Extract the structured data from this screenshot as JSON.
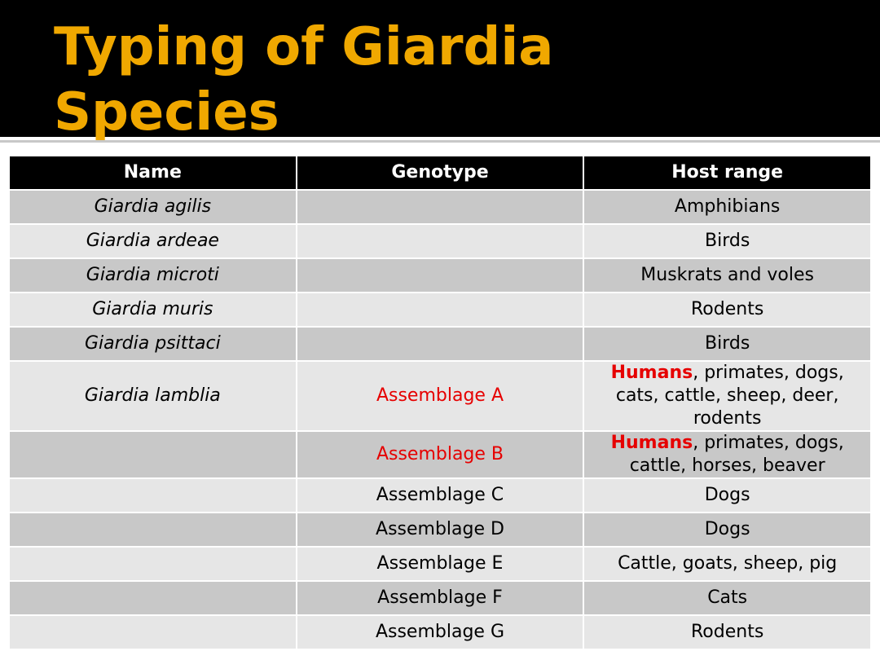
{
  "title": "Typing of Giardia Species",
  "table": {
    "headers": [
      "Name",
      "Genotype",
      "Host range"
    ],
    "rows": [
      {
        "name": "Giardia agilis",
        "genotype": null,
        "host": "Amphibians"
      },
      {
        "name": "Giardia ardeae",
        "genotype": null,
        "host": "Birds"
      },
      {
        "name": "Giardia microti",
        "genotype": null,
        "host": "Muskrats and voles"
      },
      {
        "name": "Giardia muris",
        "genotype": null,
        "host": "Rodents"
      },
      {
        "name": "Giardia psittaci",
        "genotype": null,
        "host": "Birds"
      },
      {
        "name": "Giardia lamblia",
        "genotype": "Assemblage A",
        "color": "#e60000",
        "host": {
          "emph": "Humans",
          "rest": ", primates, dogs, cats, cattle, sheep, deer, rodents"
        }
      },
      {
        "name": null,
        "genotype": "Assemblage B",
        "color": "#e60000",
        "host": {
          "emph": "Humans",
          "rest": ", primates, dogs, cattle, horses, beaver"
        }
      },
      {
        "name": null,
        "genotype": "Assemblage C",
        "host": "Dogs"
      },
      {
        "name": null,
        "genotype": "Assemblage D",
        "host": "Dogs"
      },
      {
        "name": null,
        "genotype": "Assemblage E",
        "host": "Cattle, goats, sheep, pig"
      },
      {
        "name": null,
        "genotype": "Assemblage F",
        "host": "Cats"
      },
      {
        "name": null,
        "genotype": "Assemblage G",
        "host": "Rodents"
      }
    ]
  }
}
